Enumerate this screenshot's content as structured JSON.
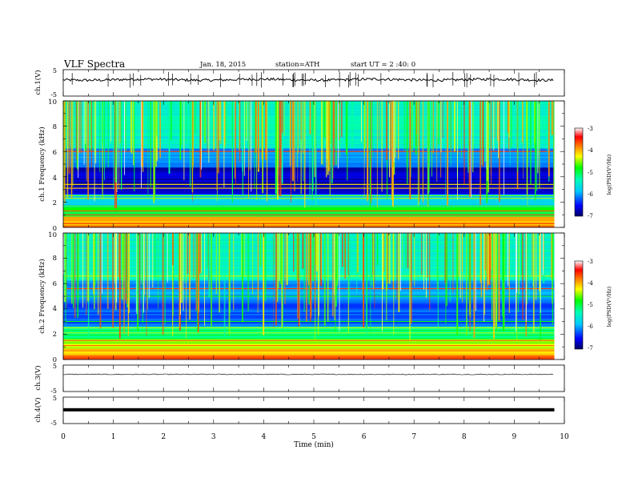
{
  "header": {
    "title": "VLF  Spectra",
    "date": "Jan. 18, 2015",
    "station": "station=ATH",
    "start": "start  UT  =   2 :40: 0"
  },
  "chart_data": [
    {
      "type": "line",
      "panel": "ch1-waveform",
      "ylabel": "ch.1(V)",
      "ylim": [
        -5,
        5
      ],
      "yticks": [
        "5",
        "-5"
      ],
      "xlim": [
        0,
        10
      ],
      "baseline_v": 1.2,
      "noise_v": 0.5
    },
    {
      "type": "heatmap",
      "panel": "ch1-spectrogram",
      "ylabel": "ch.1  Frequency  (kHz)",
      "ylim": [
        0,
        10
      ],
      "yticks": [
        "0",
        "2",
        "4",
        "6",
        "8",
        "10"
      ],
      "xlim": [
        0,
        9.8
      ],
      "colorbar": {
        "label": "log(PSD(V²/Hz)",
        "ticks": [
          "-3",
          "-4",
          "-5",
          "-6",
          "-7"
        ],
        "range": [
          -7,
          -3
        ]
      }
    },
    {
      "type": "heatmap",
      "panel": "ch2-spectrogram",
      "ylabel": "ch.2  Frequency  (kHz)",
      "ylim": [
        0,
        10
      ],
      "yticks": [
        "0",
        "2",
        "4",
        "6",
        "8",
        "10"
      ],
      "xlim": [
        0,
        9.8
      ],
      "colorbar": {
        "label": "log(PSD(V²/Hz)",
        "ticks": [
          "-3",
          "-4",
          "-5",
          "-6",
          "-7"
        ],
        "range": [
          -7,
          -3
        ]
      }
    },
    {
      "type": "line",
      "panel": "ch3-waveform",
      "ylabel": "ch.3(V)",
      "ylim": [
        -5,
        5
      ],
      "yticks": [
        "5",
        "-5"
      ],
      "xlim": [
        0,
        9.8
      ],
      "baseline_v": 1.5
    },
    {
      "type": "line",
      "panel": "ch4-waveform",
      "ylabel": "ch.4(V)",
      "ylim": [
        -5,
        5
      ],
      "yticks": [
        "5",
        "-5"
      ],
      "xlim": [
        0,
        9.8
      ],
      "baseline_v": 0.2
    }
  ],
  "xaxis": {
    "label": "Time  (min)",
    "ticks": [
      "0",
      "1",
      "2",
      "3",
      "4",
      "5",
      "6",
      "7",
      "8",
      "9",
      "10"
    ],
    "xlim": [
      0,
      10
    ]
  },
  "colors": {
    "background": "#ffffff",
    "spectrogram_low": "#00005a",
    "spectrogram_high": "#ff0000"
  }
}
